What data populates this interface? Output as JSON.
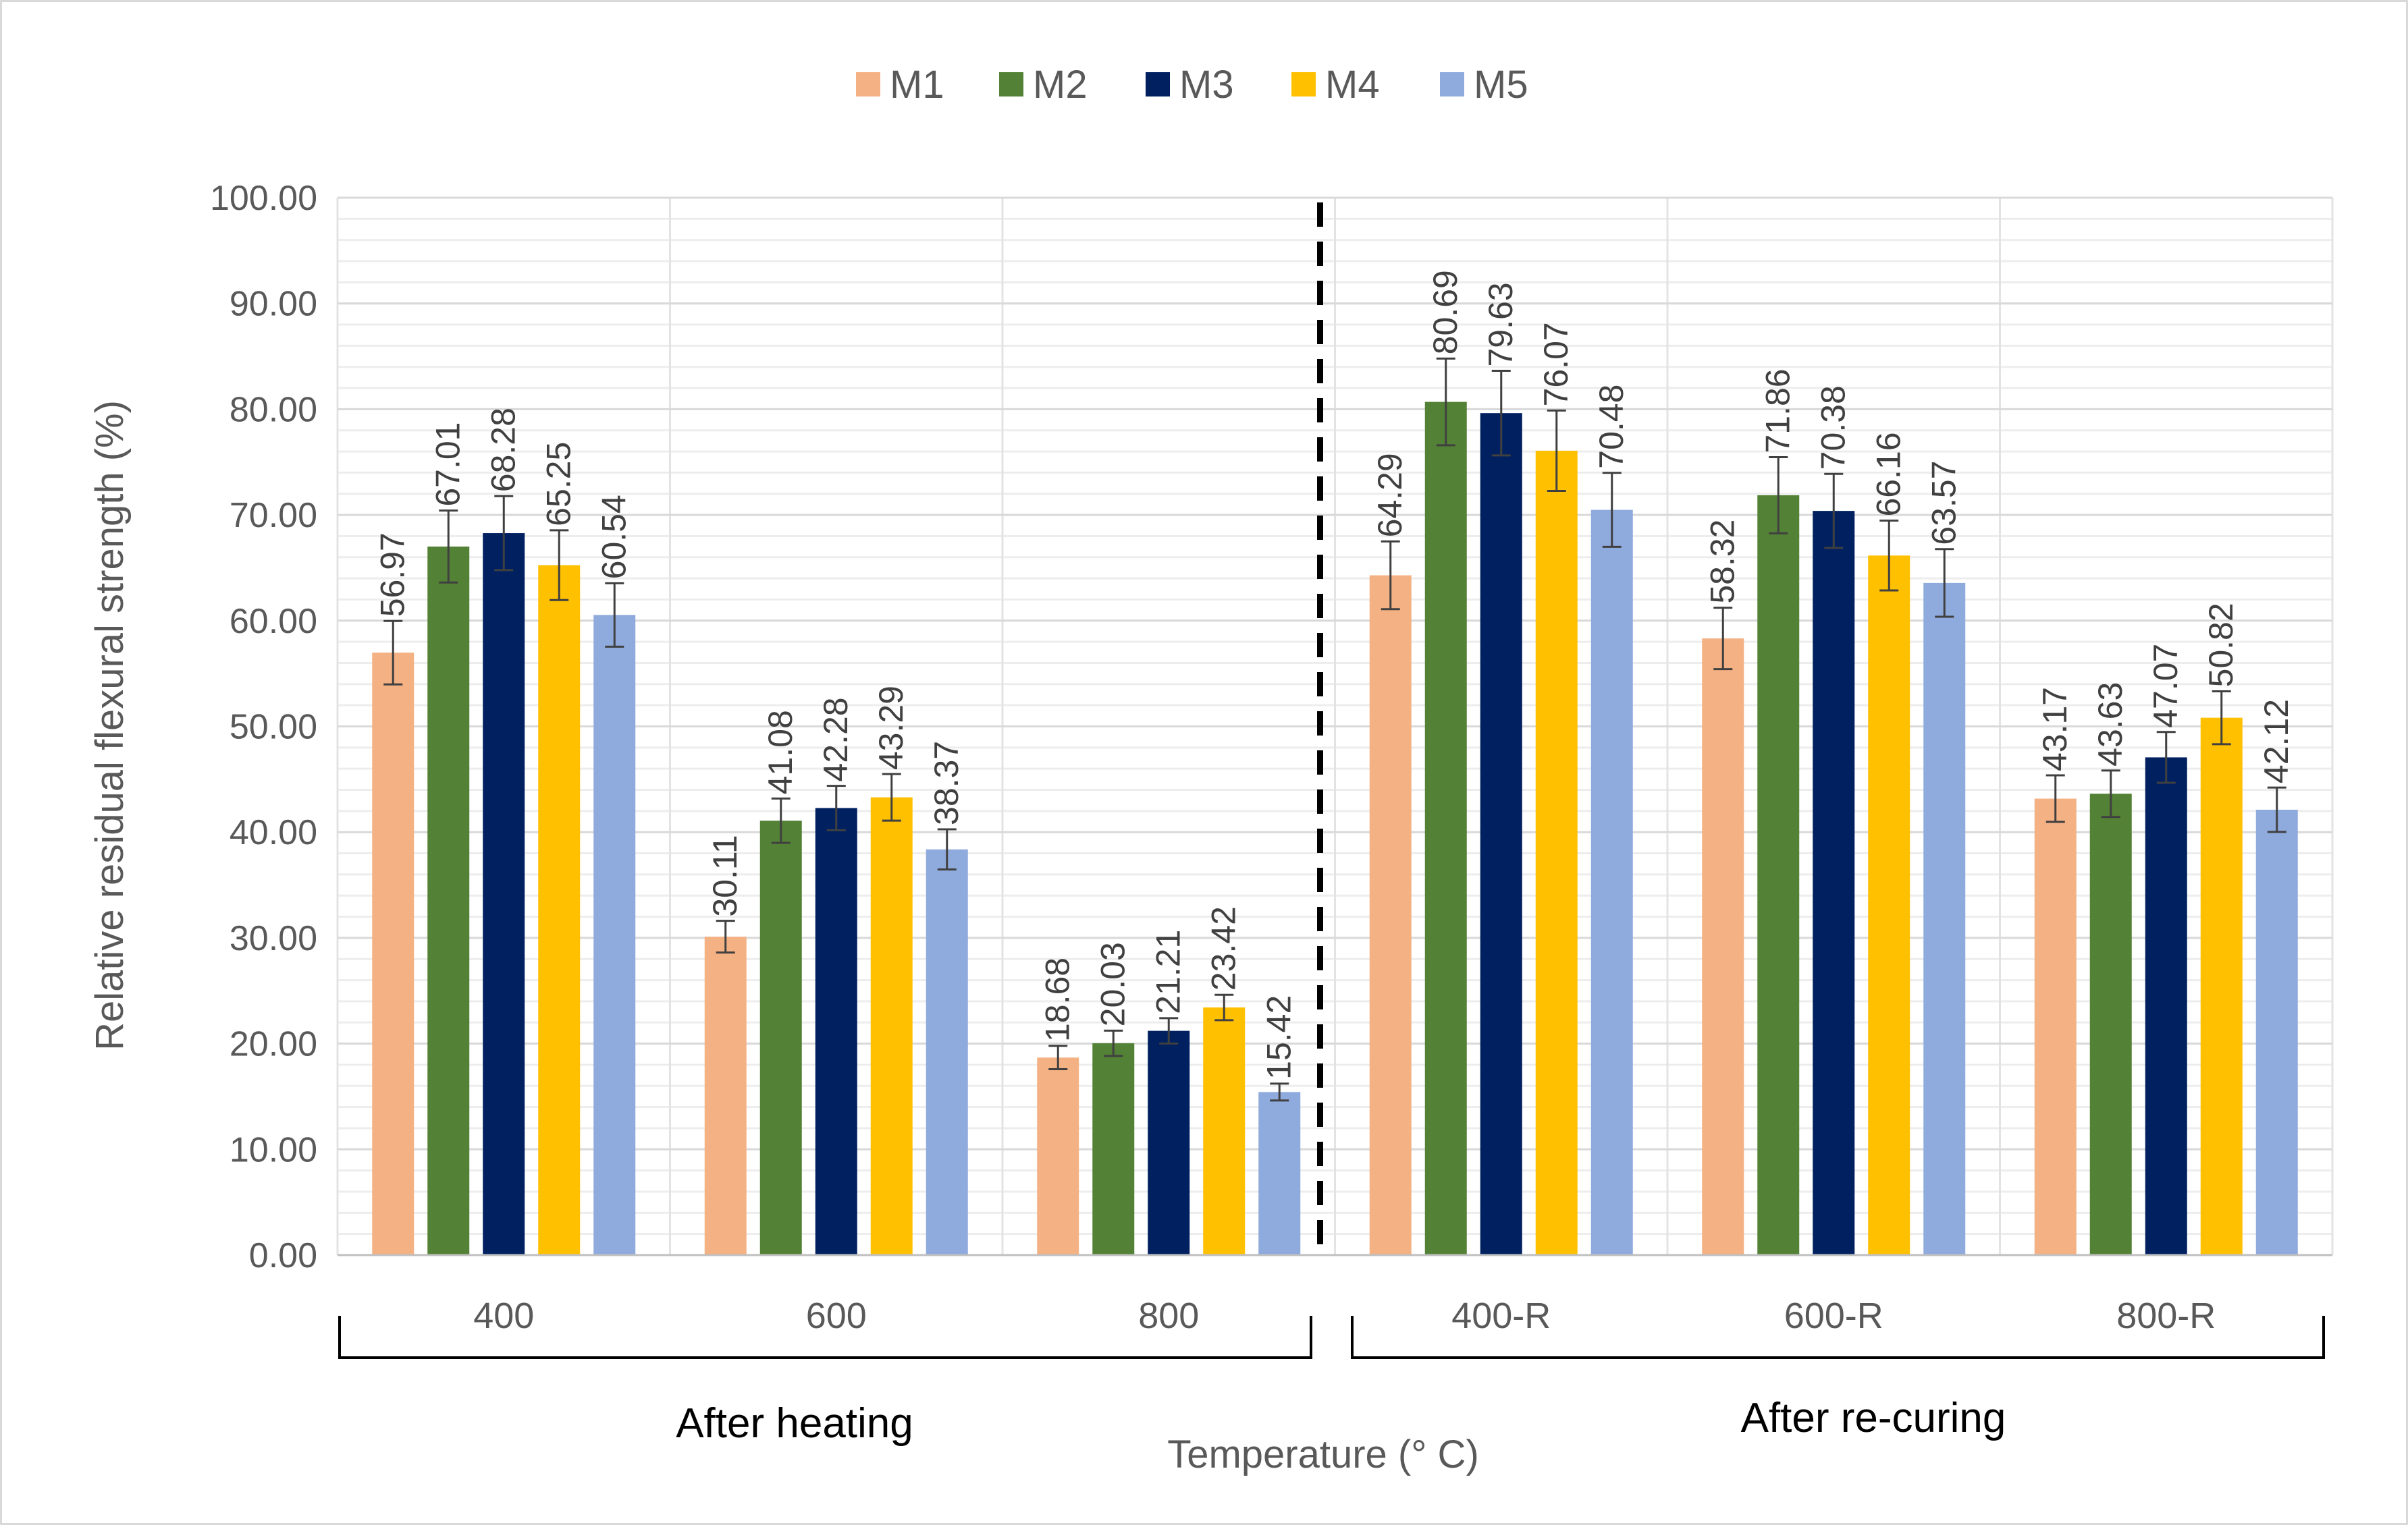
{
  "chart_data": {
    "type": "bar",
    "title": "",
    "xlabel": "Temperature (° C)",
    "ylabel": "Relative residual flexural  strength (%)",
    "ylim": [
      0,
      100
    ],
    "yticks": [
      "0.00",
      "10.00",
      "20.00",
      "30.00",
      "40.00",
      "50.00",
      "60.00",
      "70.00",
      "80.00",
      "90.00",
      "100.00"
    ],
    "categories": [
      "400",
      "600",
      "800",
      "400-R",
      "600-R",
      "800-R"
    ],
    "groups": [
      {
        "label": "After heating",
        "categories": [
          "400",
          "600",
          "800"
        ]
      },
      {
        "label": "After re-curing",
        "categories": [
          "400-R",
          "600-R",
          "800-R"
        ]
      }
    ],
    "legend_position": "top-center",
    "grid": true,
    "series": [
      {
        "name": "M1",
        "color": "#F4B183",
        "values": [
          56.97,
          30.11,
          18.68,
          64.29,
          58.32,
          43.17
        ],
        "labels": [
          "56.97",
          "30.11",
          "18.68",
          "64.29",
          "58.32",
          "43.17"
        ],
        "errors": [
          3.0,
          1.5,
          1.1,
          3.2,
          2.9,
          2.2
        ]
      },
      {
        "name": "M2",
        "color": "#538135",
        "values": [
          67.01,
          41.08,
          20.03,
          80.69,
          71.86,
          43.63
        ],
        "labels": [
          "67.01",
          "41.08",
          "20.03",
          "80.69",
          "71.86",
          "43.63"
        ],
        "errors": [
          3.4,
          2.1,
          1.2,
          4.1,
          3.6,
          2.2
        ]
      },
      {
        "name": "M3",
        "color": "#002060",
        "values": [
          68.28,
          42.28,
          21.21,
          79.63,
          70.38,
          47.07
        ],
        "labels": [
          "68.28",
          "42.28",
          "21.21",
          "79.63",
          "70.38",
          "47.07"
        ],
        "errors": [
          3.5,
          2.1,
          1.2,
          4.0,
          3.5,
          2.4
        ]
      },
      {
        "name": "M4",
        "color": "#FFC000",
        "values": [
          65.25,
          43.29,
          23.42,
          76.07,
          66.16,
          50.82
        ],
        "labels": [
          "65.25",
          "43.29",
          "23.42",
          "76.07",
          "66.16",
          "50.82"
        ],
        "errors": [
          3.3,
          2.2,
          1.2,
          3.8,
          3.3,
          2.5
        ]
      },
      {
        "name": "M5",
        "color": "#8FAADC",
        "values": [
          60.54,
          38.37,
          15.42,
          70.48,
          63.57,
          42.12
        ],
        "labels": [
          "60.54",
          "38.37",
          "15.42",
          "70.48",
          "63.57",
          "42.12"
        ],
        "errors": [
          3.0,
          1.9,
          0.8,
          3.5,
          3.2,
          2.1
        ]
      }
    ]
  }
}
